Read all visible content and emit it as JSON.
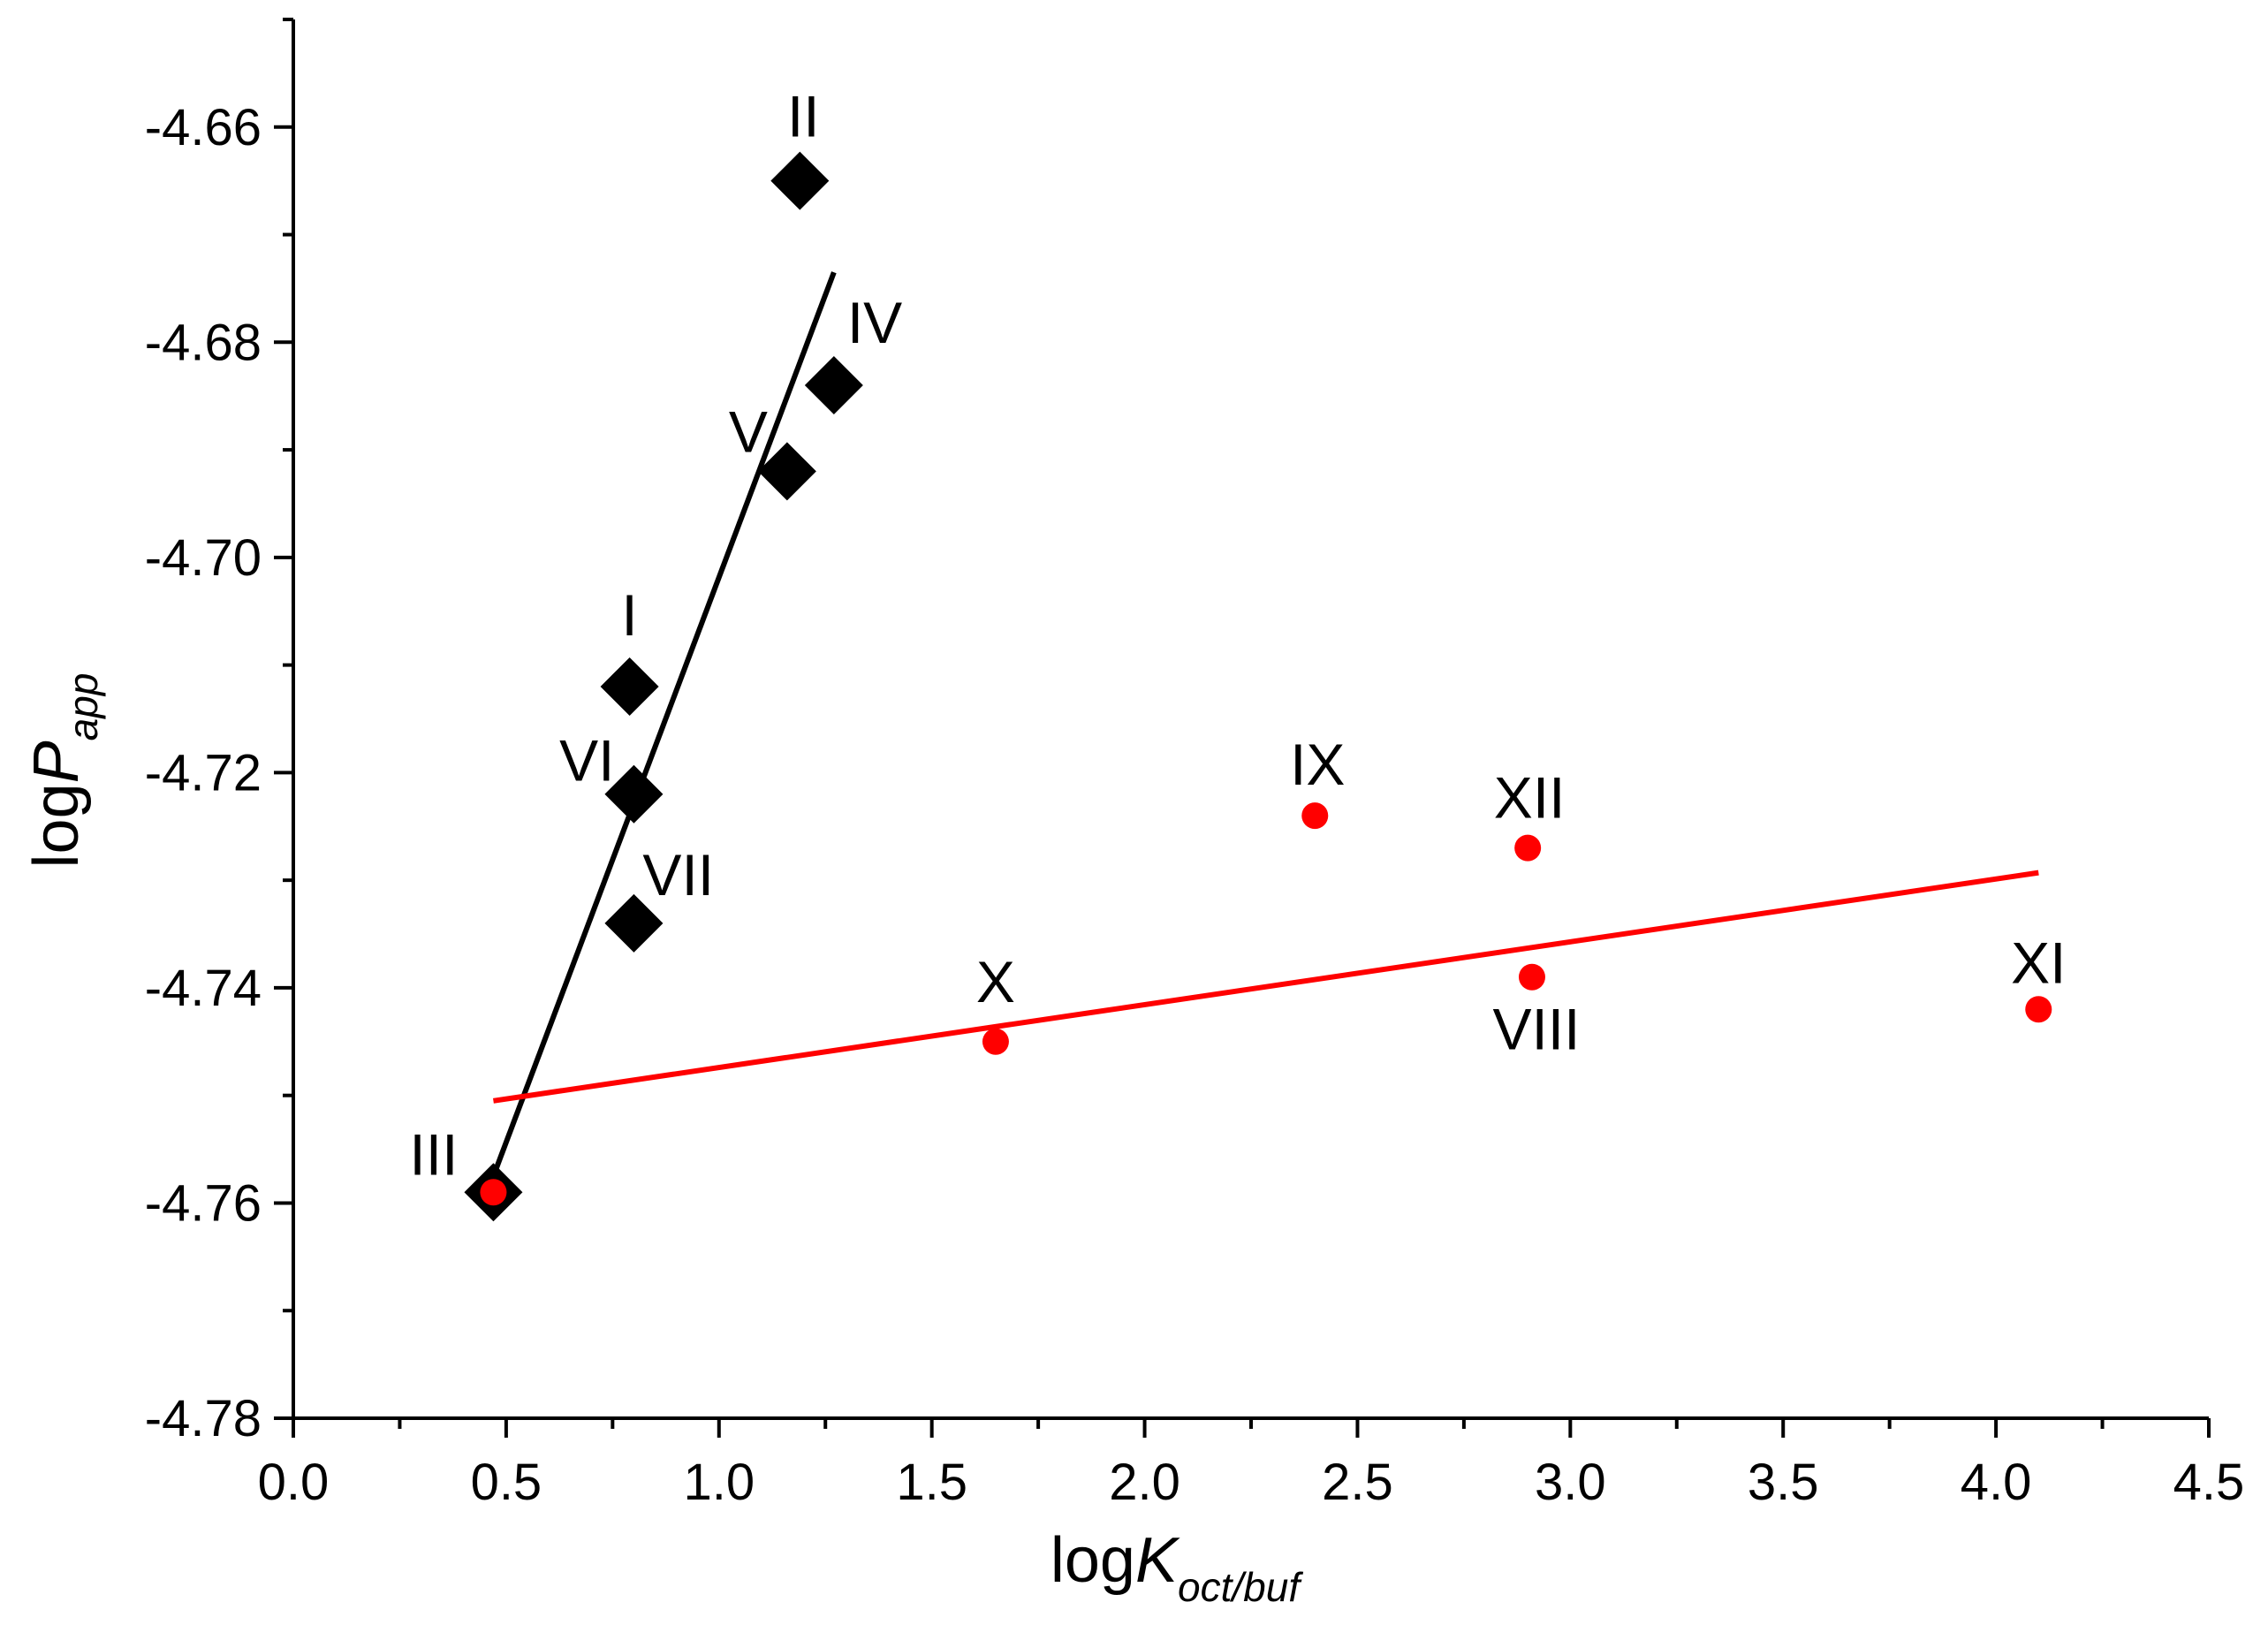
{
  "chart_data": {
    "type": "scatter",
    "title": "",
    "xlabel": {
      "main": "log",
      "italic": "K",
      "sub": "oct/buf"
    },
    "ylabel": {
      "main": "log",
      "italic": "P",
      "sub": "app"
    },
    "xlim": [
      0.0,
      4.5
    ],
    "ylim": [
      -4.78,
      -4.65
    ],
    "x_ticks": [
      {
        "value": 0.0,
        "label": "0.0"
      },
      {
        "value": 0.5,
        "label": "0.5"
      },
      {
        "value": 1.0,
        "label": "1.0"
      },
      {
        "value": 1.5,
        "label": "1.5"
      },
      {
        "value": 2.0,
        "label": "2.0"
      },
      {
        "value": 2.5,
        "label": "2.5"
      },
      {
        "value": 3.0,
        "label": "3.0"
      },
      {
        "value": 3.5,
        "label": "3.5"
      },
      {
        "value": 4.0,
        "label": "4.0"
      },
      {
        "value": 4.5,
        "label": "4.5"
      }
    ],
    "y_ticks": [
      {
        "value": -4.78,
        "label": "-4.78"
      },
      {
        "value": -4.76,
        "label": "-4.76"
      },
      {
        "value": -4.74,
        "label": "-4.74"
      },
      {
        "value": -4.72,
        "label": "-4.72"
      },
      {
        "value": -4.7,
        "label": "-4.70"
      },
      {
        "value": -4.68,
        "label": "-4.68"
      },
      {
        "value": -4.66,
        "label": "-4.66"
      }
    ],
    "grid": false,
    "series": [
      {
        "name": "black diamonds",
        "marker": "diamond",
        "color": "#000000",
        "points": [
          {
            "label": "I",
            "x": 0.79,
            "y": -4.712
          },
          {
            "label": "II",
            "x": 1.19,
            "y": -4.665
          },
          {
            "label": "III",
            "x": 0.47,
            "y": -4.759
          },
          {
            "label": "IV",
            "x": 1.27,
            "y": -4.684
          },
          {
            "label": "V",
            "x": 1.16,
            "y": -4.692
          },
          {
            "label": "VI",
            "x": 0.8,
            "y": -4.722
          },
          {
            "label": "VII",
            "x": 0.8,
            "y": -4.734
          }
        ],
        "fit_line": {
          "x": [
            0.47,
            1.27
          ],
          "y": [
            -4.7575,
            -4.6735
          ]
        }
      },
      {
        "name": "red circles",
        "marker": "circle",
        "color": "#ff0000",
        "points": [
          {
            "label": "III",
            "x": 0.47,
            "y": -4.759
          },
          {
            "label": "VIII",
            "x": 2.91,
            "y": -4.739
          },
          {
            "label": "IX",
            "x": 2.4,
            "y": -4.724
          },
          {
            "label": "X",
            "x": 1.65,
            "y": -4.745
          },
          {
            "label": "XI",
            "x": 4.1,
            "y": -4.742
          },
          {
            "label": "XII",
            "x": 2.9,
            "y": -4.727
          }
        ],
        "fit_line": {
          "x": [
            0.47,
            4.1
          ],
          "y": [
            -4.7505,
            -4.7293
          ]
        }
      }
    ]
  }
}
